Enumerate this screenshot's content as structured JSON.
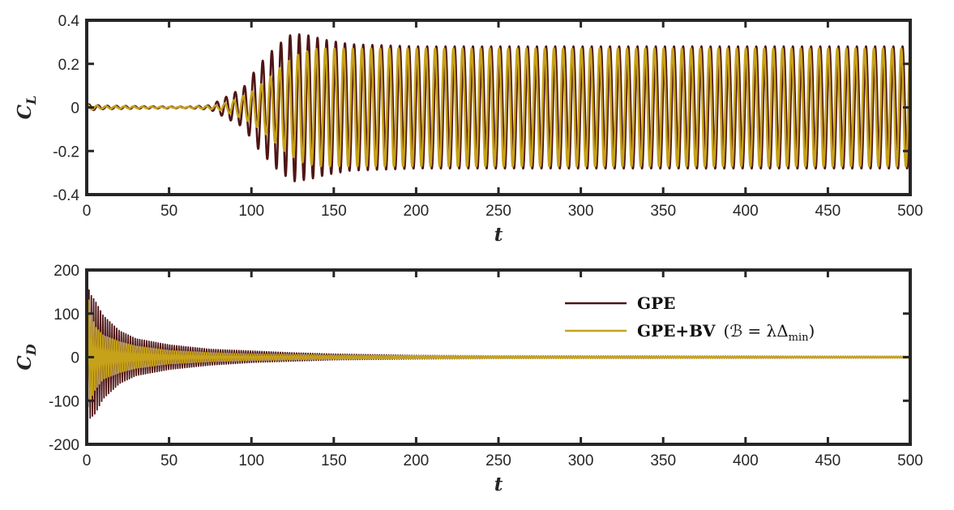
{
  "chart_data": [
    {
      "type": "line",
      "xlabel": "t",
      "ylabel": "C_L",
      "ylabel_main": "C",
      "ylabel_sub": "L",
      "xlim": [
        0,
        500
      ],
      "ylim": [
        -0.4,
        0.4
      ],
      "xticks": [
        0,
        50,
        100,
        150,
        200,
        250,
        300,
        350,
        400,
        450,
        500
      ],
      "yticks": [
        -0.4,
        -0.2,
        0,
        0.2,
        0.4
      ],
      "xtick_labels": [
        "0",
        "50",
        "100",
        "150",
        "200",
        "250",
        "300",
        "350",
        "400",
        "450",
        "500"
      ],
      "ytick_labels": [
        "-0.4",
        "-0.2",
        "0",
        "0.2",
        "0.4"
      ],
      "grid": false,
      "series": [
        {
          "color": "#4f1515",
          "period": 5.55,
          "amplitude_envelope": [
            [
              0,
              0.015
            ],
            [
              10,
              0.008
            ],
            [
              60,
              0.003
            ],
            [
              75,
              0.01
            ],
            [
              85,
              0.05
            ],
            [
              95,
              0.09
            ],
            [
              105,
              0.2
            ],
            [
              115,
              0.28
            ],
            [
              125,
              0.34
            ],
            [
              135,
              0.33
            ],
            [
              145,
              0.31
            ],
            [
              160,
              0.29
            ],
            [
              180,
              0.285
            ],
            [
              200,
              0.28
            ],
            [
              500,
              0.28
            ]
          ]
        },
        {
          "color": "#c6a21a",
          "period": 5.55,
          "amplitude_envelope": [
            [
              0,
              0.012
            ],
            [
              10,
              0.006
            ],
            [
              60,
              0.002
            ],
            [
              80,
              0.01
            ],
            [
              90,
              0.035
            ],
            [
              100,
              0.07
            ],
            [
              110,
              0.13
            ],
            [
              120,
              0.2
            ],
            [
              130,
              0.25
            ],
            [
              140,
              0.27
            ],
            [
              150,
              0.27
            ],
            [
              200,
              0.27
            ],
            [
              500,
              0.27
            ]
          ]
        }
      ]
    },
    {
      "type": "line",
      "xlabel": "t",
      "ylabel": "C_D",
      "ylabel_main": "C",
      "ylabel_sub": "D",
      "xlim": [
        0,
        500
      ],
      "ylim": [
        -200,
        200
      ],
      "xticks": [
        0,
        50,
        100,
        150,
        200,
        250,
        300,
        350,
        400,
        450,
        500
      ],
      "yticks": [
        -200,
        -100,
        0,
        100,
        200
      ],
      "xtick_labels": [
        "0",
        "50",
        "100",
        "150",
        "200",
        "250",
        "300",
        "350",
        "400",
        "450",
        "500"
      ],
      "ytick_labels": [
        "-200",
        "-100",
        "0",
        "100",
        "200"
      ],
      "grid": false,
      "legend_position": "top-right",
      "series": [
        {
          "name": "GPE",
          "color": "#4f1515",
          "upper_envelope": [
            [
              0,
              175
            ],
            [
              2,
              145
            ],
            [
              5,
              130
            ],
            [
              10,
              95
            ],
            [
              20,
              60
            ],
            [
              30,
              42
            ],
            [
              50,
              28
            ],
            [
              75,
              18
            ],
            [
              100,
              14
            ],
            [
              125,
              10
            ],
            [
              150,
              7
            ],
            [
              200,
              4
            ],
            [
              250,
              3
            ],
            [
              500,
              2
            ]
          ],
          "lower_envelope": [
            [
              0,
              -100
            ],
            [
              2,
              -140
            ],
            [
              5,
              -130
            ],
            [
              10,
              -95
            ],
            [
              20,
              -60
            ],
            [
              30,
              -42
            ],
            [
              50,
              -28
            ],
            [
              75,
              -18
            ],
            [
              100,
              -12
            ],
            [
              125,
              -9
            ],
            [
              150,
              -6
            ],
            [
              200,
              -4
            ],
            [
              250,
              -3
            ],
            [
              500,
              -2
            ]
          ]
        },
        {
          "name": "GPE+BV (ℬ = λΔmin)",
          "color": "#c6a21a",
          "upper_envelope": [
            [
              0,
              180
            ],
            [
              2,
              110
            ],
            [
              5,
              70
            ],
            [
              10,
              50
            ],
            [
              20,
              35
            ],
            [
              30,
              25
            ],
            [
              50,
              15
            ],
            [
              75,
              10
            ],
            [
              100,
              7
            ],
            [
              150,
              4
            ],
            [
              200,
              3
            ],
            [
              500,
              2
            ]
          ],
          "lower_envelope": [
            [
              0,
              -90
            ],
            [
              2,
              -100
            ],
            [
              5,
              -75
            ],
            [
              10,
              -50
            ],
            [
              20,
              -35
            ],
            [
              30,
              -25
            ],
            [
              50,
              -15
            ],
            [
              75,
              -10
            ],
            [
              100,
              -7
            ],
            [
              150,
              -4
            ],
            [
              200,
              -3
            ],
            [
              500,
              -2
            ]
          ]
        }
      ],
      "legend": [
        {
          "label_main": "GPE"
        },
        {
          "label_main": "GPE+BV",
          "label_math": "(ℬ = λΔ",
          "label_sub": "min",
          "label_close": ")"
        }
      ]
    }
  ]
}
